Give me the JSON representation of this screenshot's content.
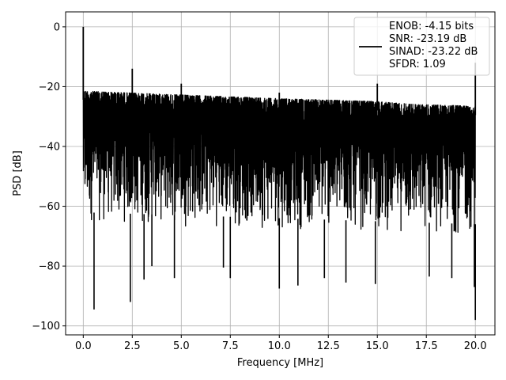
{
  "chart_data": {
    "type": "line",
    "title": "",
    "xlabel": "Frequency [MHz]",
    "ylabel": "PSD [dB]",
    "xlim": [
      -0.9,
      21.0
    ],
    "ylim": [
      -103.0,
      5.0
    ],
    "grid": true,
    "x_ticks": [
      0.0,
      2.5,
      5.0,
      7.5,
      10.0,
      12.5,
      15.0,
      17.5,
      20.0
    ],
    "x_tick_labels": [
      "0.0",
      "2.5",
      "5.0",
      "7.5",
      "10.0",
      "12.5",
      "15.0",
      "17.5",
      "20.0"
    ],
    "y_ticks": [
      0,
      -20,
      -40,
      -60,
      -80,
      -100
    ],
    "y_tick_labels": [
      "0",
      "−20",
      "−40",
      "−60",
      "−80",
      "−100"
    ],
    "legend": {
      "placement": "upper-right",
      "entries": [
        "ENOB: -4.15 bits",
        "SNR: -23.19 dB",
        "SINAD: -23.22 dB",
        "SFDR: 1.09"
      ]
    },
    "series": [
      {
        "color": "#000000",
        "x_range": [
          0,
          20.0
        ],
        "noise_upper_envelope": [
          [
            0.0,
            -21.5
          ],
          [
            2.0,
            -22.0
          ],
          [
            5.0,
            -22.8
          ],
          [
            10.0,
            -24.0
          ],
          [
            15.0,
            -25.0
          ],
          [
            17.0,
            -26.0
          ],
          [
            20.0,
            -26.5
          ]
        ],
        "noise_lower_envelope": [
          [
            0.0,
            -66.0
          ],
          [
            5.0,
            -67.0
          ],
          [
            10.0,
            -68.0
          ],
          [
            15.0,
            -69.0
          ],
          [
            20.0,
            -70.0
          ]
        ],
        "spurs": [
          {
            "x": 0.0,
            "y": 0.0
          },
          {
            "x": 2.5,
            "y": -14.0
          },
          {
            "x": 5.0,
            "y": -19.0
          },
          {
            "x": 10.0,
            "y": -22.0
          },
          {
            "x": 15.0,
            "y": -19.0
          },
          {
            "x": 20.0,
            "y": -12.0
          }
        ],
        "dips": [
          {
            "x": 0.55,
            "y": -94.5
          },
          {
            "x": 2.4,
            "y": -92.0
          },
          {
            "x": 3.1,
            "y": -84.5
          },
          {
            "x": 3.5,
            "y": -80.0
          },
          {
            "x": 4.65,
            "y": -84.0
          },
          {
            "x": 7.15,
            "y": -80.5
          },
          {
            "x": 7.5,
            "y": -84.0
          },
          {
            "x": 10.0,
            "y": -87.5
          },
          {
            "x": 10.95,
            "y": -86.5
          },
          {
            "x": 12.3,
            "y": -84.0
          },
          {
            "x": 13.4,
            "y": -85.5
          },
          {
            "x": 14.9,
            "y": -86.0
          },
          {
            "x": 17.65,
            "y": -83.5
          },
          {
            "x": 18.8,
            "y": -84.0
          },
          {
            "x": 19.95,
            "y": -87.0
          },
          {
            "x": 20.0,
            "y": -98.0
          }
        ]
      }
    ]
  }
}
